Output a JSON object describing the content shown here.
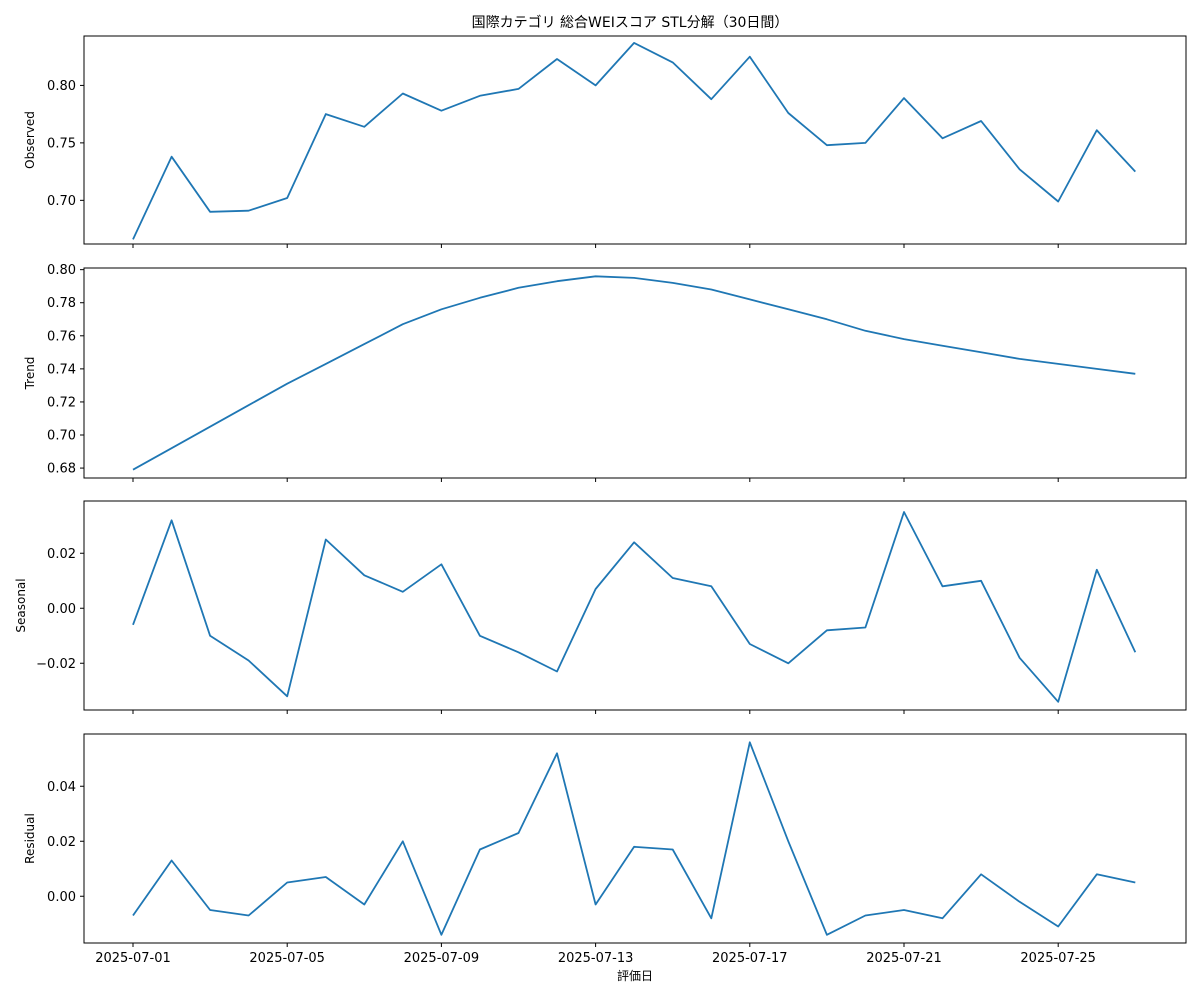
{
  "chart_data": {
    "type": "line",
    "title": "国際カテゴリ 総合WEIスコア STL分解（30日間）",
    "xlabel": "評価日",
    "x": [
      "2025-07-01",
      "2025-07-02",
      "2025-07-03",
      "2025-07-04",
      "2025-07-05",
      "2025-07-06",
      "2025-07-07",
      "2025-07-08",
      "2025-07-09",
      "2025-07-10",
      "2025-07-11",
      "2025-07-12",
      "2025-07-13",
      "2025-07-14",
      "2025-07-15",
      "2025-07-16",
      "2025-07-17",
      "2025-07-18",
      "2025-07-19",
      "2025-07-20",
      "2025-07-21",
      "2025-07-22",
      "2025-07-23",
      "2025-07-24",
      "2025-07-25",
      "2025-07-26",
      "2025-07-27"
    ],
    "xticks": [
      "2025-07-01",
      "2025-07-05",
      "2025-07-09",
      "2025-07-13",
      "2025-07-17",
      "2025-07-21",
      "2025-07-25"
    ],
    "color": "#1f77b4",
    "panels": [
      {
        "ylabel": "Observed",
        "ylim": [
          0.662,
          0.843
        ],
        "yticks": [
          0.7,
          0.75,
          0.8
        ],
        "ytick_labels": [
          "0.70",
          "0.75",
          "0.80"
        ],
        "values": [
          0.666,
          0.738,
          0.69,
          0.691,
          0.702,
          0.775,
          0.764,
          0.793,
          0.778,
          0.791,
          0.797,
          0.823,
          0.8,
          0.837,
          0.82,
          0.788,
          0.825,
          0.776,
          0.748,
          0.75,
          0.789,
          0.754,
          0.769,
          0.727,
          0.699,
          0.761,
          0.725
        ]
      },
      {
        "ylabel": "Trend",
        "ylim": [
          0.674,
          0.801
        ],
        "yticks": [
          0.68,
          0.7,
          0.72,
          0.74,
          0.76,
          0.78,
          0.8
        ],
        "ytick_labels": [
          "0.68",
          "0.70",
          "0.72",
          "0.74",
          "0.76",
          "0.78",
          "0.80"
        ],
        "values": [
          0.679,
          0.692,
          0.705,
          0.718,
          0.731,
          0.743,
          0.755,
          0.767,
          0.776,
          0.783,
          0.789,
          0.793,
          0.796,
          0.795,
          0.792,
          0.788,
          0.782,
          0.776,
          0.77,
          0.763,
          0.758,
          0.754,
          0.75,
          0.746,
          0.743,
          0.74,
          0.737
        ]
      },
      {
        "ylabel": "Seasonal",
        "ylim": [
          -0.037,
          0.039
        ],
        "yticks": [
          -0.02,
          0.0,
          0.02
        ],
        "ytick_labels": [
          "−0.02",
          "0.00",
          "0.02"
        ],
        "values": [
          -0.006,
          0.032,
          -0.01,
          -0.019,
          -0.032,
          0.025,
          0.012,
          0.006,
          0.016,
          -0.01,
          -0.016,
          -0.023,
          0.007,
          0.024,
          0.011,
          0.008,
          -0.013,
          -0.02,
          -0.008,
          -0.007,
          0.035,
          0.008,
          0.01,
          -0.018,
          -0.034,
          0.014,
          -0.016
        ]
      },
      {
        "ylabel": "Residual",
        "ylim": [
          -0.017,
          0.059
        ],
        "yticks": [
          0.0,
          0.02,
          0.04
        ],
        "ytick_labels": [
          "0.00",
          "0.02",
          "0.04"
        ],
        "values": [
          -0.007,
          0.013,
          -0.005,
          -0.007,
          0.005,
          0.007,
          -0.003,
          0.02,
          -0.014,
          0.017,
          0.023,
          0.052,
          -0.003,
          0.018,
          0.017,
          -0.008,
          0.056,
          0.02,
          -0.014,
          -0.007,
          -0.005,
          -0.008,
          0.008,
          -0.002,
          -0.011,
          0.008,
          0.005
        ]
      }
    ]
  }
}
